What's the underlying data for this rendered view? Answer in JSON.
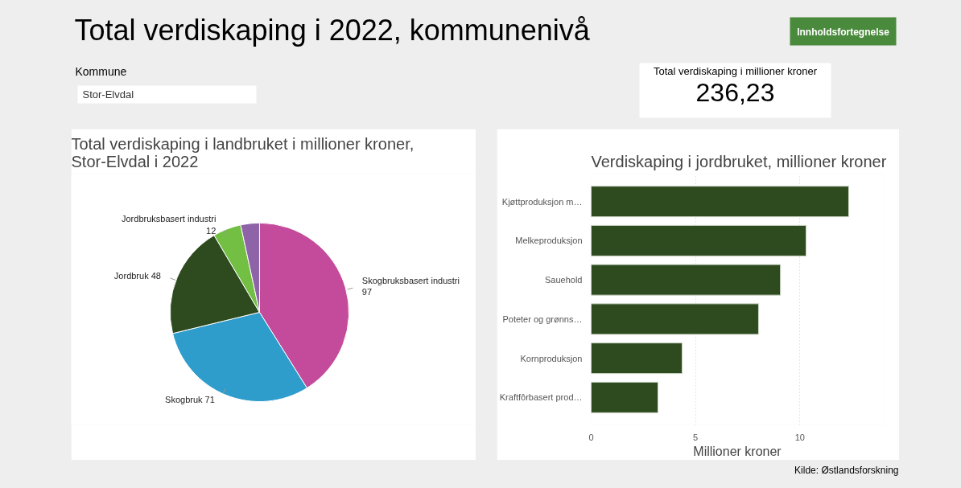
{
  "chart_data": [
    {
      "type": "other",
      "title": "Total verdiskaping i 2022, kommunenivå",
      "annotations": [
        "Kommune",
        "Stor-Elvdal",
        "Innholdsfortegnelse"
      ]
    },
    {
      "type": "other",
      "title": "Total verdiskaping i millioner kroner",
      "annotations": [
        "236,23"
      ]
    },
    {
      "type": "pie",
      "title": "Total verdiskaping i landbruket i millioner kroner, Stor-Elvdal i 2022",
      "categories": [
        "Skogbruksbasert industri",
        "Skogbruk",
        "Jordbruk",
        "Jordbruksbasert industri",
        null
      ],
      "values": [
        97,
        71,
        48,
        12,
        8
      ],
      "colors": [
        "#c44b9b",
        "#2f9dcb",
        "#2e4a1f",
        "#72bf44",
        "#8e63a8"
      ],
      "value_labels": [
        "97",
        "71",
        "48",
        "12",
        null
      ]
    },
    {
      "type": "bar",
      "orientation": "horizontal",
      "title": "Verdiskaping i jordbruket, millioner kroner",
      "xlabel": "Millioner kroner",
      "categories": [
        "Kjøttproduksjon m…",
        "Melkeproduksjon",
        "Sauehold",
        "Poteter og grønns…",
        "Kornproduksjon",
        "Kraftfôrbasert prod…"
      ],
      "values": [
        12.34,
        10.3,
        9.07,
        8.02,
        4.36,
        3.2
      ],
      "color": "#2e4a1f",
      "xlim": [
        0,
        14
      ],
      "xticks": [
        0,
        5,
        10
      ],
      "grid": "x",
      "annotations": [
        "Kilde: Østlandsforskning"
      ]
    }
  ]
}
